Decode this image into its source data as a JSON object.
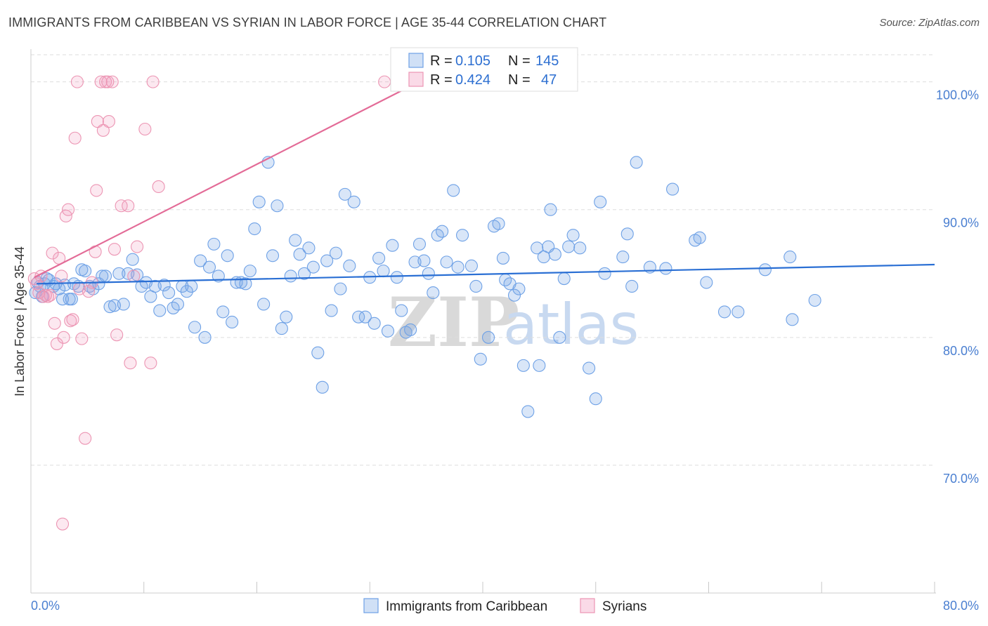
{
  "title": "IMMIGRANTS FROM CARIBBEAN VS SYRIAN IN LABOR FORCE | AGE 35-44 CORRELATION CHART",
  "source": "Source: ZipAtlas.com",
  "watermark": {
    "zip": "ZIP",
    "atlas": "atlas"
  },
  "colors": {
    "blue": "#6ea1e6",
    "blue_fill": "rgba(120,165,230,0.28)",
    "blue_line": "#2a6fd4",
    "pink": "#ec95b3",
    "pink_fill": "rgba(240,150,185,0.22)",
    "pink_line": "#e36b97",
    "axis_text": "#4a7fd1",
    "grid": "#dddddd"
  },
  "legend": {
    "rows": [
      {
        "r_label": "R =",
        "r_value": "0.105",
        "n_label": "N =",
        "n_value": "145"
      },
      {
        "r_label": "R =",
        "r_value": "0.424",
        "n_label": "N =",
        "n_value": "47"
      }
    ]
  },
  "chart_data": {
    "type": "scatter",
    "title": "IMMIGRANTS FROM CARIBBEAN VS SYRIAN IN LABOR FORCE | AGE 35-44 CORRELATION CHART",
    "xlabel": "",
    "ylabel": "In Labor Force | Age 35-44",
    "xlim": [
      0,
      80
    ],
    "ylim": [
      60,
      103
    ],
    "x_tick_labels": [
      "0.0%",
      "80.0%"
    ],
    "y_ticks": [
      70,
      80,
      90,
      100
    ],
    "y_tick_labels": [
      "70.0%",
      "80.0%",
      "90.0%",
      "100.0%"
    ],
    "grid": true,
    "series": [
      {
        "name": "Immigrants from Caribbean",
        "color": "#6ea1e6",
        "trend": {
          "x0": 0.5,
          "y0": 84.2,
          "x1": 80,
          "y1": 85.7
        },
        "points": [
          [
            0.4,
            83.5
          ],
          [
            0.8,
            84
          ],
          [
            1.2,
            84.2
          ],
          [
            1.6,
            84.5
          ],
          [
            2,
            84
          ],
          [
            2.5,
            83.8
          ],
          [
            3,
            84.1
          ],
          [
            3.4,
            83
          ],
          [
            3.8,
            84.2
          ],
          [
            4.2,
            84
          ],
          [
            0.6,
            84.3
          ],
          [
            1,
            83.2
          ],
          [
            1.4,
            84.6
          ],
          [
            2.2,
            84.2
          ],
          [
            2.8,
            83
          ],
          [
            3.6,
            83
          ],
          [
            4.5,
            85.3
          ],
          [
            4.8,
            85.2
          ],
          [
            5.2,
            84
          ],
          [
            5.5,
            83.8
          ],
          [
            6,
            84.2
          ],
          [
            6.3,
            84.8
          ],
          [
            6.6,
            84.8
          ],
          [
            7,
            82.4
          ],
          [
            7.4,
            82.5
          ],
          [
            7.8,
            85
          ],
          [
            8.2,
            82.6
          ],
          [
            8.6,
            85
          ],
          [
            9,
            86.1
          ],
          [
            9.4,
            84.9
          ],
          [
            9.8,
            84
          ],
          [
            10.2,
            84.3
          ],
          [
            10.6,
            83.2
          ],
          [
            11,
            84
          ],
          [
            11.4,
            82.1
          ],
          [
            11.8,
            84.1
          ],
          [
            12.2,
            83.5
          ],
          [
            12.6,
            82.3
          ],
          [
            13,
            82.6
          ],
          [
            13.4,
            84
          ],
          [
            13.8,
            83.6
          ],
          [
            14.2,
            84
          ],
          [
            14.5,
            80.8
          ],
          [
            15,
            86
          ],
          [
            15.4,
            80
          ],
          [
            15.8,
            85.5
          ],
          [
            16.2,
            87.3
          ],
          [
            16.6,
            84.8
          ],
          [
            17,
            82
          ],
          [
            17.4,
            86.4
          ],
          [
            17.8,
            81.2
          ],
          [
            18.2,
            84.3
          ],
          [
            18.6,
            84.3
          ],
          [
            19,
            84.2
          ],
          [
            19.4,
            85.2
          ],
          [
            19.8,
            88.5
          ],
          [
            20.2,
            90.6
          ],
          [
            20.6,
            82.6
          ],
          [
            21,
            93.7
          ],
          [
            21.4,
            86.4
          ],
          [
            21.8,
            90.3
          ],
          [
            22.2,
            80.7
          ],
          [
            22.6,
            81.6
          ],
          [
            23,
            84.8
          ],
          [
            23.4,
            87.6
          ],
          [
            23.8,
            86.5
          ],
          [
            24.2,
            85
          ],
          [
            24.6,
            87
          ],
          [
            25,
            85.5
          ],
          [
            25.4,
            78.8
          ],
          [
            25.8,
            76.1
          ],
          [
            26.2,
            86
          ],
          [
            26.6,
            82.1
          ],
          [
            27,
            86.6
          ],
          [
            27.4,
            83.8
          ],
          [
            27.8,
            91.2
          ],
          [
            28.2,
            85.6
          ],
          [
            28.6,
            90.6
          ],
          [
            29,
            81.6
          ],
          [
            29.6,
            81.6
          ],
          [
            30,
            84.7
          ],
          [
            30.4,
            81.1
          ],
          [
            30.8,
            86.2
          ],
          [
            31.2,
            85.2
          ],
          [
            31.6,
            80.5
          ],
          [
            32,
            87.2
          ],
          [
            32.4,
            84.7
          ],
          [
            32.8,
            82.1
          ],
          [
            33.2,
            80.4
          ],
          [
            33.6,
            80.6
          ],
          [
            34,
            85.9
          ],
          [
            34.4,
            87.3
          ],
          [
            34.8,
            86
          ],
          [
            35.2,
            85
          ],
          [
            35.6,
            83.5
          ],
          [
            36,
            88
          ],
          [
            36.4,
            88.3
          ],
          [
            36.8,
            85.9
          ],
          [
            37.4,
            91.5
          ],
          [
            37.8,
            85.5
          ],
          [
            38.2,
            88
          ],
          [
            39,
            85.6
          ],
          [
            39.4,
            84
          ],
          [
            39.8,
            78.3
          ],
          [
            40.5,
            80
          ],
          [
            41,
            88.7
          ],
          [
            41.4,
            88.9
          ],
          [
            41.8,
            86.2
          ],
          [
            42,
            84.5
          ],
          [
            42.4,
            84.2
          ],
          [
            42.8,
            83.3
          ],
          [
            43.2,
            83.8
          ],
          [
            43.6,
            77.8
          ],
          [
            44,
            74.2
          ],
          [
            44.8,
            87
          ],
          [
            45,
            77.8
          ],
          [
            45.4,
            86.3
          ],
          [
            45.8,
            87.1
          ],
          [
            46,
            90
          ],
          [
            46.4,
            86.5
          ],
          [
            46.8,
            80
          ],
          [
            47.2,
            84.6
          ],
          [
            47.6,
            87.1
          ],
          [
            48,
            88
          ],
          [
            48.6,
            87
          ],
          [
            49.4,
            77.6
          ],
          [
            50,
            75.2
          ],
          [
            50.4,
            90.6
          ],
          [
            50.8,
            85
          ],
          [
            52.4,
            86.3
          ],
          [
            52.8,
            88.1
          ],
          [
            53.2,
            84
          ],
          [
            53.6,
            93.7
          ],
          [
            54.8,
            85.5
          ],
          [
            56.2,
            85.4
          ],
          [
            56.8,
            91.6
          ],
          [
            58.8,
            87.6
          ],
          [
            59.2,
            87.8
          ],
          [
            59.8,
            84.3
          ],
          [
            61.4,
            82
          ],
          [
            62.6,
            82
          ],
          [
            65,
            85.3
          ],
          [
            67.2,
            86.3
          ],
          [
            67.4,
            81.4
          ],
          [
            69.4,
            82.9
          ]
        ]
      },
      {
        "name": "Syrians",
        "color": "#ec95b3",
        "trend": {
          "x0": 0.3,
          "y0": 84.7,
          "x1": 34.8,
          "y1": 100.2
        },
        "points": [
          [
            0.3,
            84.6
          ],
          [
            0.5,
            84.2
          ],
          [
            0.7,
            83.5
          ],
          [
            0.9,
            84.8
          ],
          [
            1.1,
            83.2
          ],
          [
            1.3,
            83.3
          ],
          [
            1.5,
            83.2
          ],
          [
            1.7,
            83.3
          ],
          [
            1.9,
            86.6
          ],
          [
            2.1,
            81.1
          ],
          [
            2.3,
            79.5
          ],
          [
            2.5,
            86.2
          ],
          [
            2.7,
            84.8
          ],
          [
            2.9,
            80
          ],
          [
            3.1,
            89.5
          ],
          [
            3.3,
            90
          ],
          [
            3.5,
            81.3
          ],
          [
            3.7,
            81.4
          ],
          [
            3.9,
            95.6
          ],
          [
            4.1,
            100
          ],
          [
            4.3,
            83.8
          ],
          [
            4.5,
            79.9
          ],
          [
            4.8,
            72.1
          ],
          [
            5.1,
            83.6
          ],
          [
            5.4,
            84.3
          ],
          [
            5.7,
            86.7
          ],
          [
            5.8,
            91.5
          ],
          [
            5.9,
            96.9
          ],
          [
            6.2,
            100
          ],
          [
            6.4,
            96.2
          ],
          [
            6.6,
            100
          ],
          [
            6.8,
            100
          ],
          [
            6.9,
            96.9
          ],
          [
            7.2,
            100
          ],
          [
            7.4,
            86.9
          ],
          [
            7.6,
            80.2
          ],
          [
            8,
            90.3
          ],
          [
            8.6,
            90.3
          ],
          [
            8.8,
            78
          ],
          [
            9.1,
            84.8
          ],
          [
            9.4,
            87.1
          ],
          [
            10.1,
            96.3
          ],
          [
            10.6,
            78
          ],
          [
            10.8,
            100
          ],
          [
            11.3,
            91.8
          ],
          [
            2.8,
            65.4
          ],
          [
            31.3,
            100
          ]
        ]
      }
    ]
  },
  "bottom_legend": [
    {
      "label": "Immigrants from Caribbean"
    },
    {
      "label": "Syrians"
    }
  ]
}
